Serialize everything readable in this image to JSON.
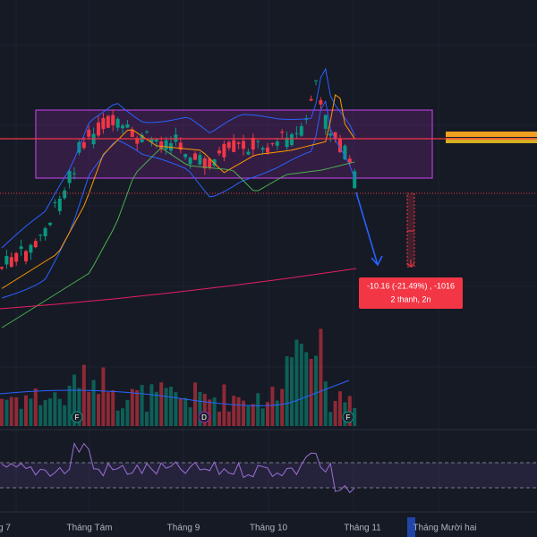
{
  "time_axis": {
    "labels": [
      "g 7",
      "Tháng Tám",
      "Tháng 9",
      "Tháng 10",
      "Tháng 11",
      "Tháng Mười hai"
    ]
  },
  "measure": {
    "change": "-10.16 (-21.49%) , -1016",
    "span": "2 thanh, 2n"
  },
  "events": [
    "F",
    "D",
    "F"
  ]
}
